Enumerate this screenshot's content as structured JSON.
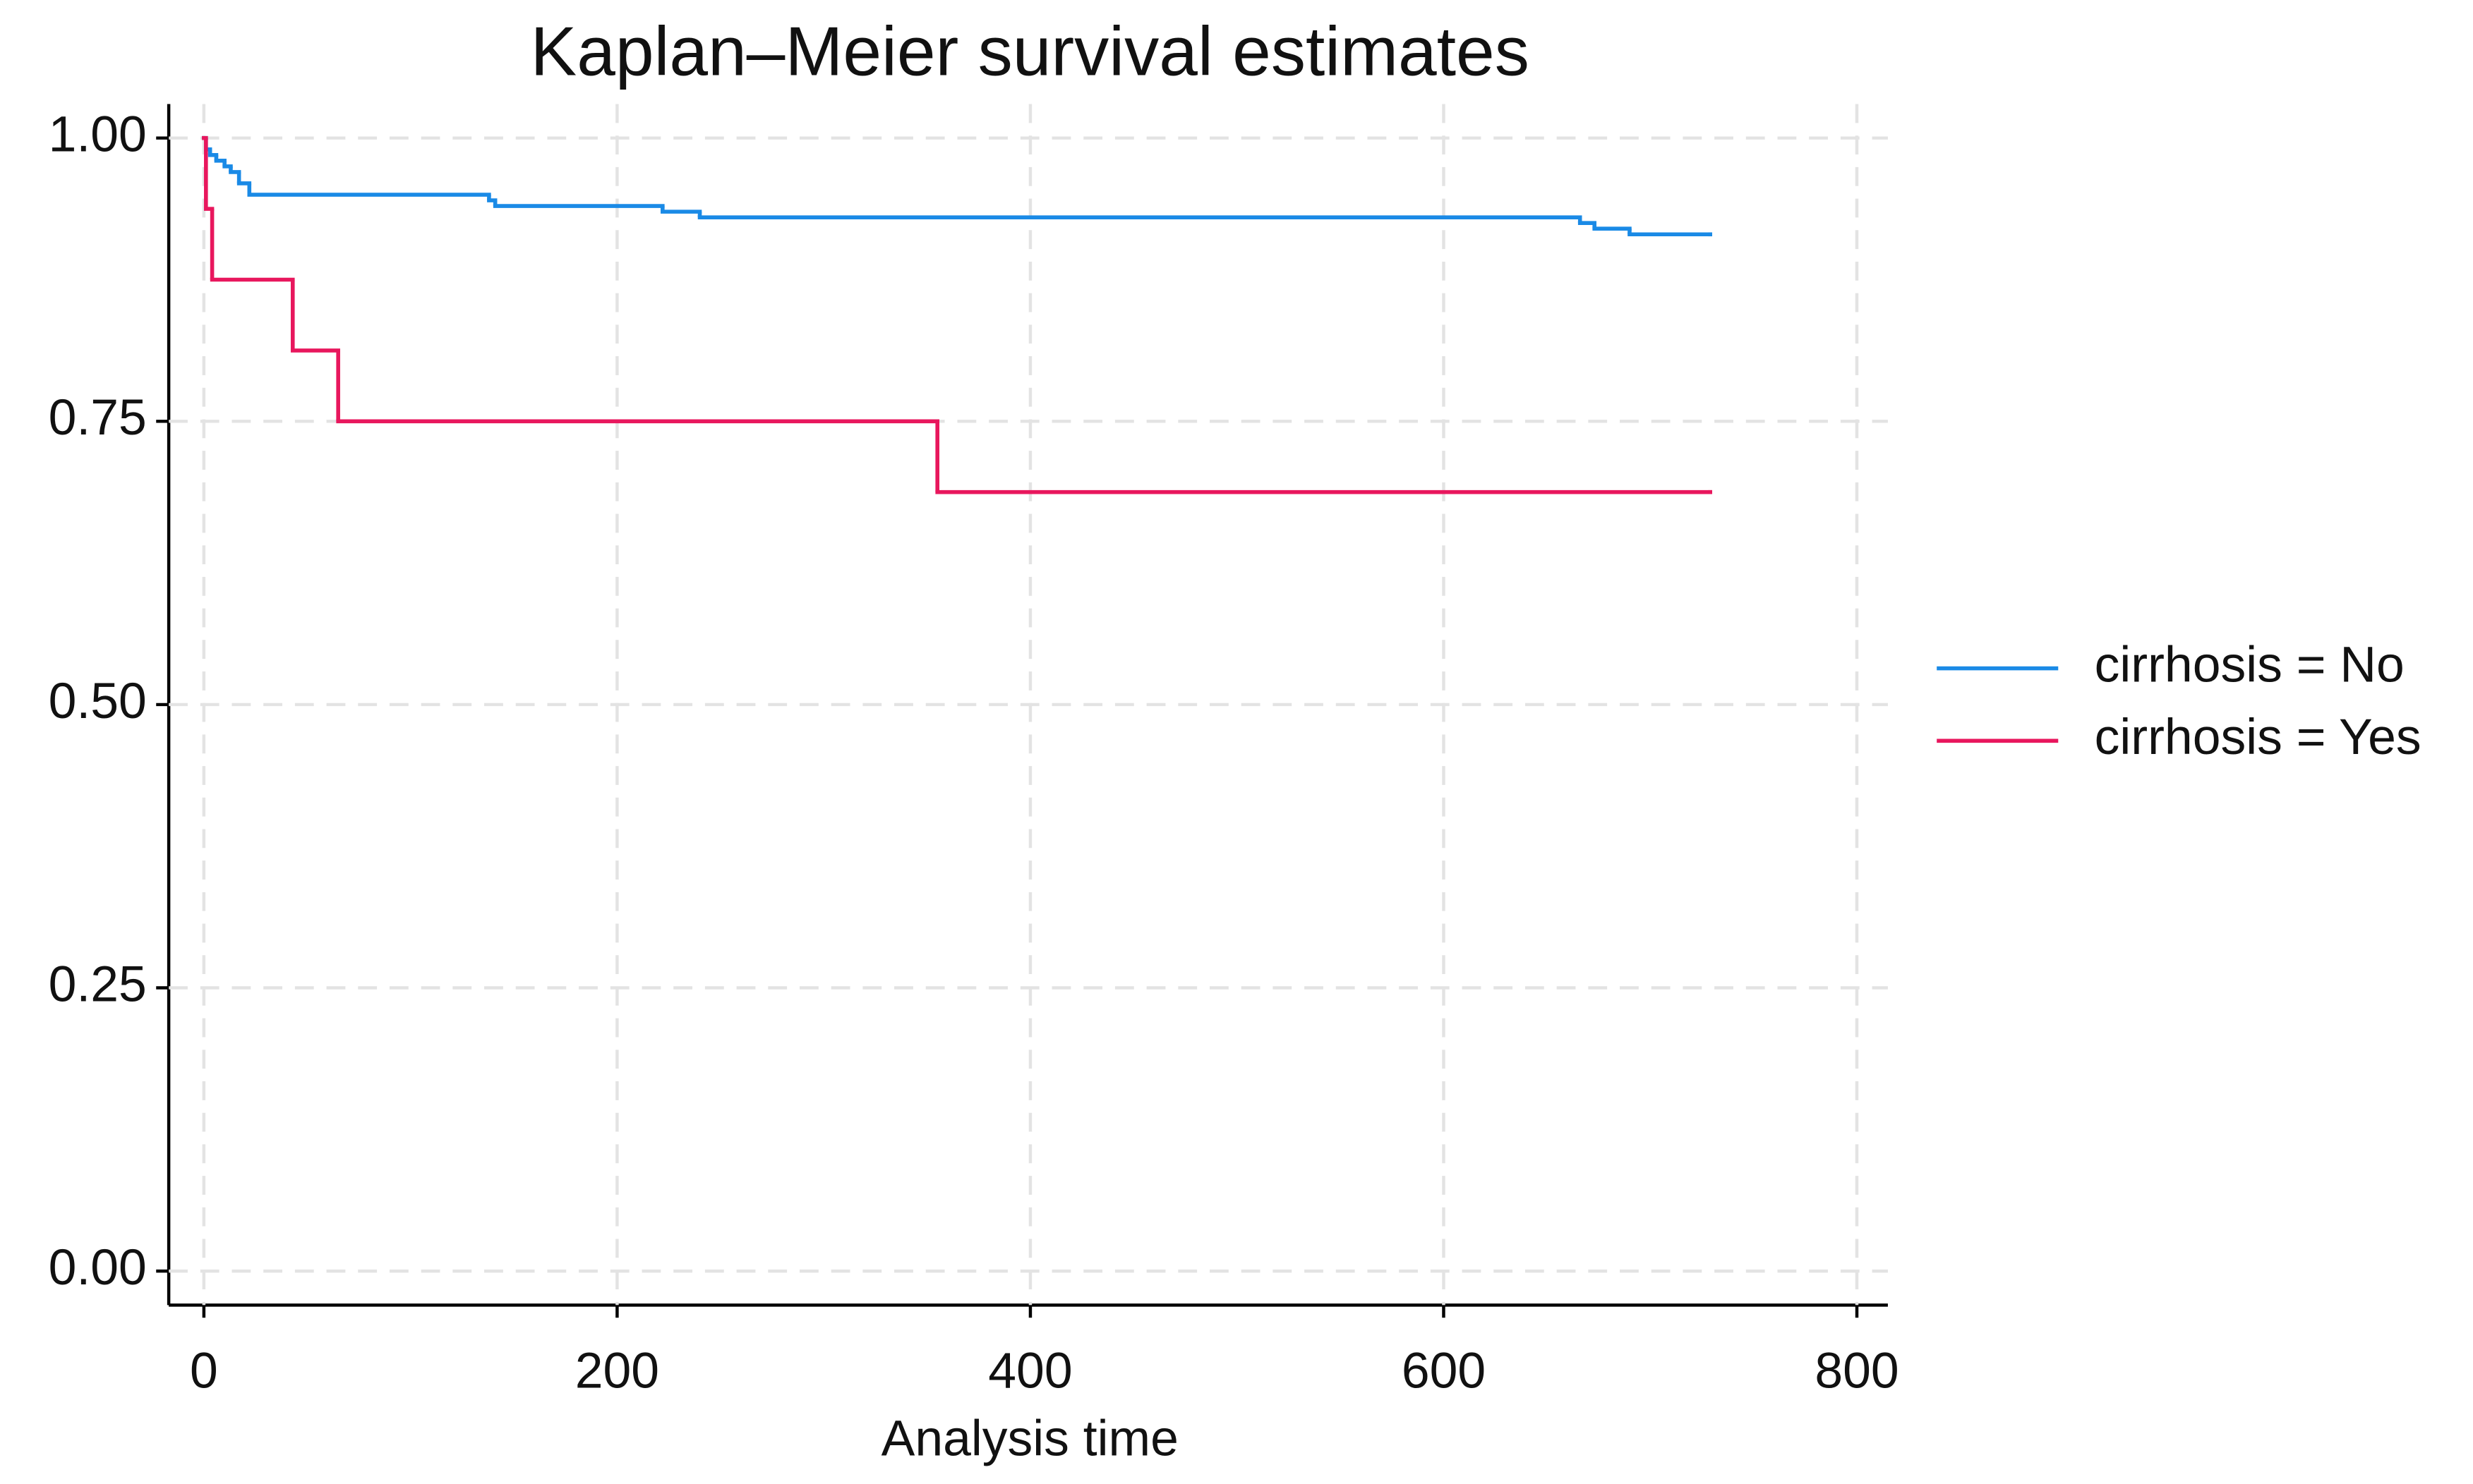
{
  "chart_data": {
    "type": "step",
    "title": "Kaplan–Meier survival estimates",
    "x_label": "Analysis time",
    "xlim": [
      -17,
      815
    ],
    "ylim": [
      -0.03,
      1.03
    ],
    "xticks": [
      0,
      200,
      400,
      600,
      800
    ],
    "yticks": [
      {
        "value": 0,
        "label": "0.00"
      },
      {
        "value": 0.25,
        "label": "0.25"
      },
      {
        "value": 0.5,
        "label": "0.50"
      },
      {
        "value": 0.75,
        "label": "0.75"
      },
      {
        "value": 1,
        "label": "1.00"
      }
    ],
    "grid": true,
    "legend": "right",
    "series": [
      {
        "name": "cirrhosis = No",
        "color": "#1a8ae6",
        "x": [
          0,
          1,
          3,
          6,
          10,
          13,
          17,
          22,
          138,
          141,
          222,
          240,
          666,
          673,
          690,
          729
        ],
        "values": [
          1.0,
          0.99,
          0.985,
          0.98,
          0.975,
          0.97,
          0.96,
          0.95,
          0.945,
          0.94,
          0.935,
          0.93,
          0.925,
          0.92,
          0.915,
          0.915
        ]
      },
      {
        "name": "cirrhosis = Yes",
        "color": "#e8175d",
        "x": [
          0,
          1,
          4,
          43,
          65,
          355,
          729
        ],
        "values": [
          1.0,
          0.9375,
          0.875,
          0.8125,
          0.75,
          0.6875,
          0.6875
        ]
      }
    ]
  }
}
